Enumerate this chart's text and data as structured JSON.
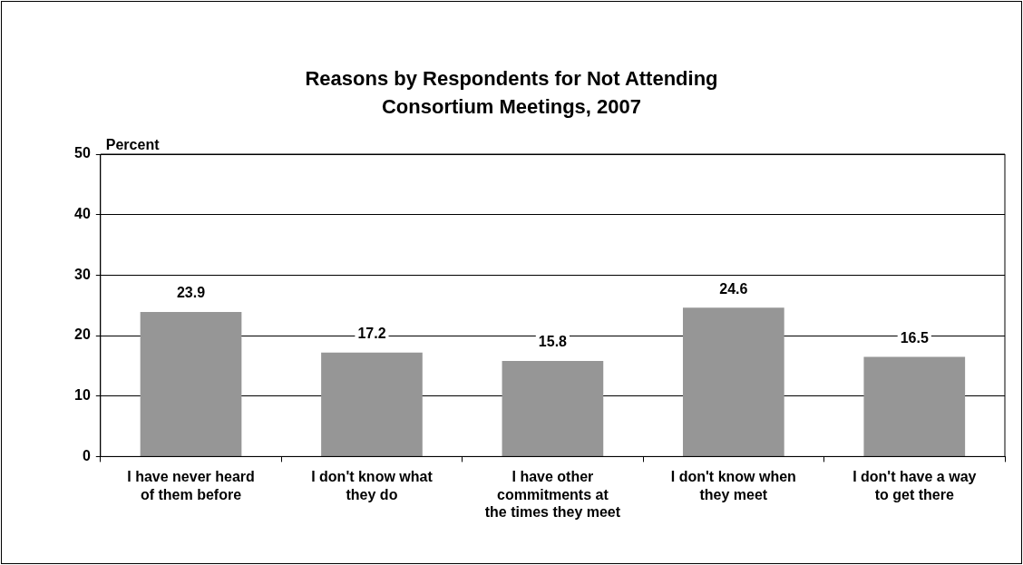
{
  "chart_data": {
    "type": "bar",
    "title": "Reasons by Respondents for Not Attending Consortium Meetings, 2007",
    "ylabel": "Percent",
    "categories": [
      "I have never heard of them before",
      "I don't know what they do",
      "I have other commitments at the times they meet",
      "I don't know when they meet",
      "I don't have a way to get there"
    ],
    "values": [
      23.9,
      17.2,
      15.8,
      24.6,
      16.5
    ],
    "color": "#969696",
    "ylim": [
      0,
      50
    ],
    "yticks": [
      0,
      10,
      20,
      30,
      40,
      50
    ],
    "grid": "y",
    "legend": false,
    "data_labels": true
  }
}
